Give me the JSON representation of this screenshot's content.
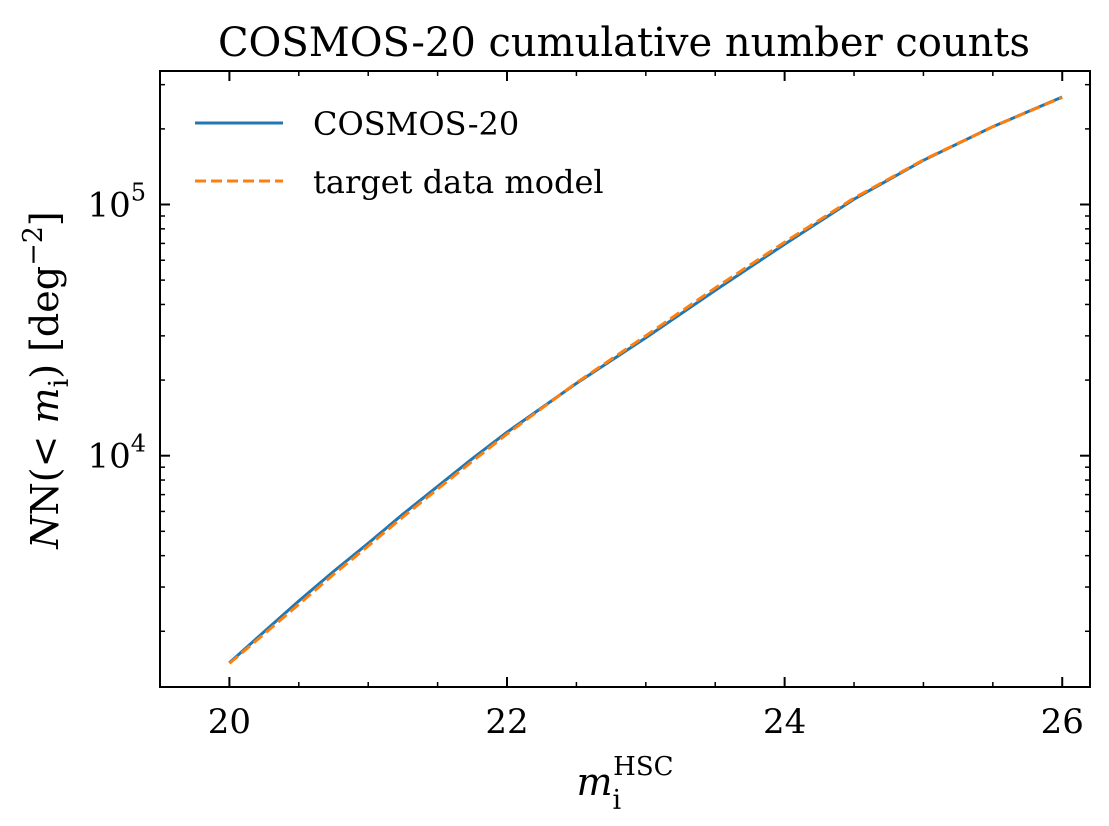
{
  "chart_data": {
    "type": "line",
    "title": "COSMOS-20 cumulative number counts",
    "xlabel": "m_i^HSC",
    "xlabel_base": "m",
    "xlabel_sub": "i",
    "xlabel_sup": "HSC",
    "ylabel": "N(< m_i) [deg^-2]",
    "ylabel_parts": {
      "pre": "N(< ",
      "var": "m",
      "sub": "i",
      "mid": ") [deg",
      "sup": "−2",
      "post": "]"
    },
    "xlim": [
      19.5,
      26.2
    ],
    "ylim": [
      1200,
      340000
    ],
    "yscale": "log",
    "xticks": [
      20,
      22,
      24,
      26
    ],
    "xtick_labels": [
      "20",
      "22",
      "24",
      "26"
    ],
    "yticks": [
      10000,
      100000
    ],
    "ytick_labels": [
      {
        "base": "10",
        "exp": "4"
      },
      {
        "base": "10",
        "exp": "5"
      }
    ],
    "grid": false,
    "legend": "upper left",
    "series": [
      {
        "name": "COSMOS-20",
        "color": "#1f77b4",
        "style": "solid",
        "x": [
          20.0,
          20.25,
          20.5,
          20.75,
          21.0,
          21.25,
          21.5,
          21.75,
          22.0,
          22.5,
          23.0,
          23.5,
          24.0,
          24.5,
          25.0,
          25.5,
          26.0
        ],
        "y": [
          1500,
          1990,
          2640,
          3460,
          4480,
          5850,
          7550,
          9730,
          12400,
          19400,
          29500,
          45500,
          69500,
          105000,
          150000,
          204000,
          268000
        ]
      },
      {
        "name": "target data model",
        "color": "#ff7f0e",
        "style": "dashed",
        "x": [
          20.0,
          20.25,
          20.5,
          20.75,
          21.0,
          21.25,
          21.5,
          21.75,
          22.0,
          22.5,
          23.0,
          23.5,
          24.0,
          24.5,
          25.0,
          25.5,
          26.0
        ],
        "y": [
          1490,
          1950,
          2560,
          3370,
          4370,
          5700,
          7370,
          9500,
          12200,
          19500,
          30000,
          46500,
          70800,
          106000,
          150500,
          204000,
          267000
        ]
      }
    ]
  }
}
